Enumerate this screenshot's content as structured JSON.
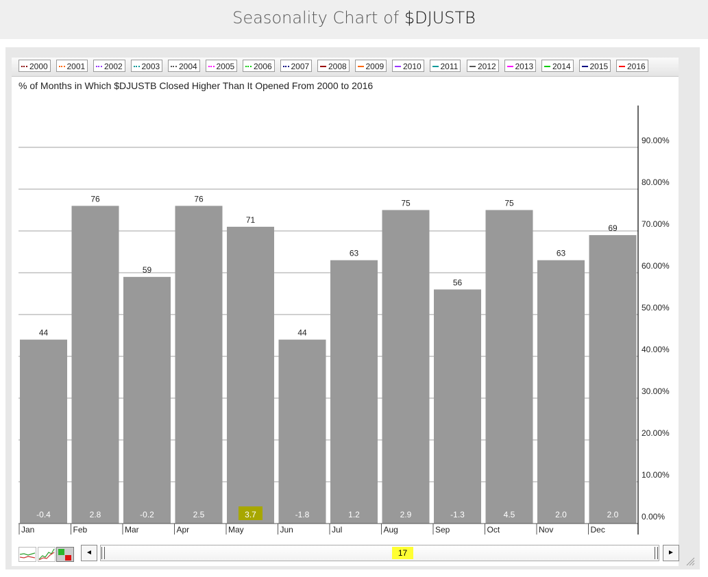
{
  "header": {
    "title_prefix": "Seasonality Chart of ",
    "title_symbol": "$DJUSTB"
  },
  "legend": [
    {
      "label": "2000",
      "color": "#8b0000",
      "style": "dotted"
    },
    {
      "label": "2001",
      "color": "#ff6600",
      "style": "dotted"
    },
    {
      "label": "2002",
      "color": "#9933ff",
      "style": "dotted"
    },
    {
      "label": "2003",
      "color": "#009999",
      "style": "dotted"
    },
    {
      "label": "2004",
      "color": "#555555",
      "style": "dotted"
    },
    {
      "label": "2005",
      "color": "#ff00ff",
      "style": "dotted"
    },
    {
      "label": "2006",
      "color": "#00cc00",
      "style": "dotted"
    },
    {
      "label": "2007",
      "color": "#000080",
      "style": "dotted"
    },
    {
      "label": "2008",
      "color": "#990000",
      "style": "solid"
    },
    {
      "label": "2009",
      "color": "#ff6600",
      "style": "solid"
    },
    {
      "label": "2010",
      "color": "#9933ff",
      "style": "solid"
    },
    {
      "label": "2011",
      "color": "#009999",
      "style": "solid"
    },
    {
      "label": "2012",
      "color": "#555555",
      "style": "solid"
    },
    {
      "label": "2013",
      "color": "#ff00ff",
      "style": "solid"
    },
    {
      "label": "2014",
      "color": "#00cc00",
      "style": "solid"
    },
    {
      "label": "2015",
      "color": "#000080",
      "style": "solid"
    },
    {
      "label": "2016",
      "color": "#ff0000",
      "style": "solid"
    }
  ],
  "chart_data": {
    "type": "bar",
    "title": "% of Months in Which $DJUSTB Closed Higher Than It Opened From 2000 to 2016",
    "categories": [
      "Jan",
      "Feb",
      "Mar",
      "Apr",
      "May",
      "Jun",
      "Jul",
      "Aug",
      "Sep",
      "Oct",
      "Nov",
      "Dec"
    ],
    "values": [
      44,
      76,
      59,
      76,
      71,
      44,
      63,
      75,
      56,
      75,
      63,
      69
    ],
    "value_labels": [
      "44",
      "76",
      "59",
      "76",
      "71",
      "44",
      "63",
      "75",
      "56",
      "75",
      "63",
      "69"
    ],
    "avg_change_labels": [
      "-0.4",
      "2.8",
      "-0.2",
      "2.5",
      "3.7",
      "-1.8",
      "1.2",
      "2.9",
      "-1.3",
      "4.5",
      "2.0",
      "2.0"
    ],
    "highlighted_category": "May",
    "y_tick_values": [
      0,
      10,
      20,
      30,
      40,
      50,
      60,
      70,
      80,
      90
    ],
    "y_tick_labels": [
      "0.00%",
      "10.00%",
      "20.00%",
      "30.00%",
      "40.00%",
      "50.00%",
      "60.00%",
      "70.00%",
      "80.00%",
      "90.00%"
    ],
    "ylim": [
      0,
      100
    ],
    "y_axis_side": "right",
    "grid": true,
    "legend_position": "top",
    "colors": {
      "bar": "#999999",
      "highlight": "#a7a700",
      "grid": "#a0a0a0",
      "axis": "#000000"
    }
  },
  "controls": {
    "scroll_value": "17",
    "scroll_left": "◄",
    "scroll_right": "►"
  }
}
